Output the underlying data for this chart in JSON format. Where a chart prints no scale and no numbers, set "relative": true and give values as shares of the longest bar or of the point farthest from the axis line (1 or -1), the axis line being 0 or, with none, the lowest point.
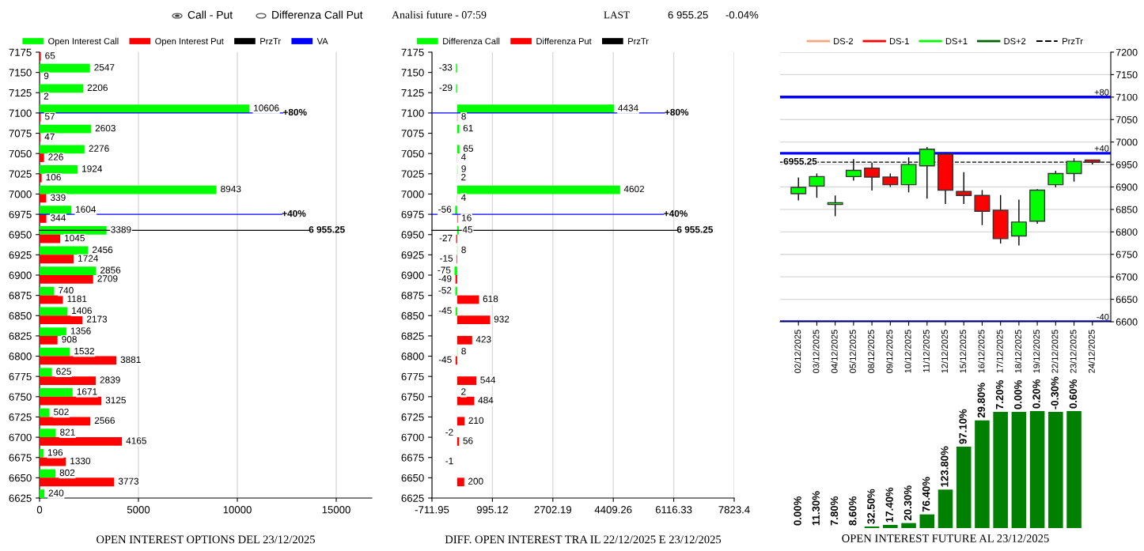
{
  "chart_data": [
    {
      "type": "bar",
      "orientation": "horizontal",
      "x": [
        7175,
        7150,
        7125,
        7100,
        7075,
        7050,
        7025,
        7000,
        6975,
        6950,
        6925,
        6900,
        6875,
        6850,
        6825,
        6800,
        6775,
        6750,
        6725,
        6700,
        6675,
        6650,
        6625
      ],
      "ylim": [
        6625,
        7175
      ],
      "yticks": [
        6625,
        6650,
        6675,
        6700,
        6725,
        6750,
        6775,
        6800,
        6825,
        6850,
        6875,
        6900,
        6925,
        6950,
        6975,
        7000,
        7025,
        7050,
        7075,
        7100,
        7125,
        7150,
        7175
      ],
      "xlim": [
        0,
        16800
      ],
      "xticks": [
        0,
        5000,
        10000,
        15000
      ],
      "grid": "x",
      "legend": "top left",
      "data_labels": true,
      "xlabel": "OPEN INTEREST OPTIONS DEL 23/12/2025",
      "annotations": [
        "Call - Put",
        "Differenza Call Put",
        {
          "text": "+80%",
          "x": 12300,
          "y": 7100
        },
        {
          "text": "+40%",
          "x": 12250,
          "y": 6975
        }
      ],
      "series": [
        {
          "name": "Open Interest Call",
          "color": "#00ff00",
          "values": [
            null,
            2547,
            2206,
            10606,
            2603,
            2276,
            1924,
            8943,
            1604,
            3389,
            2456,
            2856,
            740,
            1406,
            1356,
            1532,
            625,
            1671,
            502,
            821,
            196,
            802,
            240
          ]
        },
        {
          "name": "Open Interest Put",
          "color": "#ff0000",
          "values": [
            65,
            9,
            2,
            57,
            47,
            226,
            106,
            339,
            344,
            1045,
            1724,
            2709,
            1181,
            2173,
            908,
            3881,
            2839,
            3125,
            2566,
            4165,
            1330,
            3773,
            null
          ]
        },
        {
          "name": "PrzTr",
          "type": "line",
          "color": "#000000",
          "values": [
            null,
            null,
            null,
            null,
            null,
            null,
            null,
            null,
            null,
            null,
            null,
            null,
            null,
            null,
            null,
            null,
            null,
            null,
            null,
            null,
            null,
            null,
            null
          ]
        },
        {
          "name": "VA",
          "type": "line",
          "color": "#0000ff",
          "values": [
            null,
            null,
            null,
            null,
            null,
            null,
            null,
            null,
            null,
            null,
            null,
            null,
            null,
            null,
            null,
            null,
            null,
            null,
            null,
            null,
            null,
            null,
            null
          ]
        }
      ],
      "ref_lines": [
        {
          "axis": "y",
          "value": 7100,
          "color": "#0000ff"
        },
        {
          "axis": "y",
          "value": 6975,
          "color": "#0000ff"
        },
        {
          "axis": "y",
          "value": 6955.25,
          "label": "6 955.25",
          "color": "#000000"
        }
      ]
    },
    {
      "type": "bar",
      "orientation": "horizontal",
      "x": [
        7150,
        7125,
        7100,
        7075,
        7050,
        7025,
        7000,
        6975,
        6950,
        6925,
        6900,
        6875,
        6850,
        6825,
        6800,
        6775,
        6750,
        6725,
        6700,
        6675,
        6650
      ],
      "ylim": [
        6625,
        7175
      ],
      "yticks": [
        6625,
        6650,
        6675,
        6700,
        6725,
        6750,
        6775,
        6800,
        6825,
        6850,
        6875,
        6900,
        6925,
        6950,
        6975,
        7000,
        7025,
        7050,
        7075,
        7100,
        7125,
        7150,
        7175
      ],
      "xlim": [
        -711.95,
        7823.4
      ],
      "xticks": [
        -711.95,
        995.12,
        2702.19,
        4409.26,
        6116.33,
        7823.4
      ],
      "grid": "x",
      "legend": "top left",
      "data_labels": true,
      "title": "Analisi future - 07:59",
      "annotations": [
        "LAST",
        "6 955.25",
        "-0.04%",
        {
          "text": "+80%",
          "x": 5857,
          "y": 7100
        },
        {
          "text": "+40%",
          "x": 5830,
          "y": 6975
        }
      ],
      "xlabel": "DIFF. OPEN INTEREST TRA IL 22/12/2025 E 23/12/2025",
      "series": [
        {
          "name": "Differenza Call",
          "color": "#00ff00",
          "values": [
            -33,
            -29,
            4434,
            61,
            65,
            9,
            4602,
            -56,
            45,
            8,
            -75,
            -52,
            -45,
            null,
            8,
            null,
            2,
            null,
            -2,
            null,
            null
          ]
        },
        {
          "name": "Differenza Put",
          "color": "#ff0000",
          "values": [
            null,
            null,
            8,
            null,
            4,
            2,
            4,
            16,
            -27,
            -15,
            -49,
            618,
            932,
            423,
            -45,
            544,
            484,
            210,
            56,
            -1,
            200
          ]
        },
        {
          "name": "PrzTr",
          "type": "line",
          "color": "#000000",
          "values": [
            null,
            null,
            null,
            null,
            null,
            null,
            null,
            null,
            null,
            null,
            null,
            null,
            null,
            null,
            null,
            null,
            null,
            null,
            null,
            null,
            null
          ]
        }
      ],
      "ref_lines": [
        {
          "axis": "y",
          "value": 7100,
          "color": "#0000ff"
        },
        {
          "axis": "y",
          "value": 6975,
          "color": "#0000ff"
        },
        {
          "axis": "y",
          "value": 6955.25,
          "label": "6 955.25",
          "color": "#000000"
        }
      ]
    },
    {
      "type": "candlestick",
      "categories": [
        "02/12/2025",
        "03/12/2025",
        "04/12/2025",
        "05/12/2025",
        "08/12/2025",
        "09/12/2025",
        "10/12/2025",
        "11/12/2025",
        "12/12/2025",
        "15/12/2025",
        "16/12/2025",
        "17/12/2025",
        "18/12/2025",
        "19/12/2025",
        "22/12/2025",
        "23/12/2025",
        "24/12/2025"
      ],
      "ohlc": [
        [
          6885,
          6921,
          6870,
          6899
        ],
        [
          6902,
          6930,
          6876,
          6923
        ],
        [
          6861,
          6881,
          6835,
          6865
        ],
        [
          6923,
          6962,
          6914,
          6937
        ],
        [
          6942,
          6954,
          6892,
          6922
        ],
        [
          6922,
          6930,
          6900,
          6905
        ],
        [
          6905,
          6966,
          6888,
          6950
        ],
        [
          6947,
          6989,
          6874,
          6984
        ],
        [
          6973,
          6975,
          6862,
          6893
        ],
        [
          6890,
          6933,
          6862,
          6881
        ],
        [
          6881,
          6893,
          6815,
          6846
        ],
        [
          6848,
          6882,
          6774,
          6785
        ],
        [
          6791,
          6872,
          6770,
          6822
        ],
        [
          6824,
          6895,
          6818,
          6893
        ],
        [
          6905,
          6936,
          6899,
          6930
        ],
        [
          6930,
          6964,
          6912,
          6957
        ],
        [
          6960,
          6960,
          6950,
          6955
        ]
      ],
      "colors": [
        "#00ff00",
        "#00ff00",
        "#00ff00",
        "#00ff00",
        "#ff0000",
        "#ff0000",
        "#00ff00",
        "#00ff00",
        "#ff0000",
        "#ff0000",
        "#ff0000",
        "#ff0000",
        "#00ff00",
        "#00ff00",
        "#00ff00",
        "#00ff00",
        "#ff0000"
      ],
      "ylim": [
        6600,
        7200
      ],
      "yticks": [
        6600,
        6650,
        6700,
        6750,
        6800,
        6850,
        6900,
        6950,
        7000,
        7050,
        7100,
        7150,
        7200
      ],
      "grid": "y",
      "legend": "top",
      "annotations": [
        {
          "text": "+80",
          "y": 7100
        },
        {
          "text": "+40",
          "y": 6975
        },
        {
          "text": "-40",
          "y": 6600
        }
      ],
      "series": [
        {
          "name": "DS-2",
          "type": "line",
          "color": "#f4a582",
          "values": [
            null,
            null,
            null,
            null,
            null,
            null,
            null,
            null,
            null,
            null,
            null,
            null,
            null,
            null,
            null,
            null,
            null
          ]
        },
        {
          "name": "DS-1",
          "type": "line",
          "color": "#ff0000",
          "values": [
            null,
            null,
            null,
            null,
            null,
            null,
            null,
            null,
            null,
            null,
            null,
            null,
            null,
            null,
            null,
            null,
            null
          ]
        },
        {
          "name": "DS+1",
          "type": "line",
          "color": "#00ff00",
          "values": [
            null,
            null,
            null,
            null,
            null,
            null,
            null,
            null,
            null,
            null,
            null,
            null,
            null,
            null,
            null,
            null,
            null
          ]
        },
        {
          "name": "DS+2",
          "type": "line",
          "color": "#006400",
          "values": [
            null,
            null,
            null,
            null,
            null,
            null,
            null,
            null,
            null,
            null,
            null,
            null,
            null,
            null,
            null,
            null,
            null
          ]
        },
        {
          "name": "PrzTr",
          "type": "line",
          "color": "#000000",
          "line_style": "dashed",
          "values": [
            null,
            null,
            null,
            null,
            null,
            null,
            null,
            null,
            null,
            null,
            null,
            null,
            null,
            null,
            null,
            null,
            null
          ]
        }
      ],
      "ref_lines": [
        {
          "axis": "y",
          "value": 7100,
          "color": "#0000ff"
        },
        {
          "axis": "y",
          "value": 6975,
          "color": "#0000ff"
        },
        {
          "axis": "y",
          "value": 6600,
          "color": "#0000ff"
        },
        {
          "axis": "y",
          "value": 6955.25,
          "label": "6955.25",
          "color": "#000000",
          "line_style": "dashed"
        }
      ]
    },
    {
      "type": "bar",
      "relative": true,
      "categories": [
        null,
        null,
        null,
        null,
        null,
        null,
        null,
        null,
        null,
        null,
        null,
        null,
        null,
        null,
        null,
        null,
        null
      ],
      "xlabel": "OPEN INTEREST FUTURE AL 23/12/2025",
      "values": [
        0,
        0,
        0,
        0,
        0.0135,
        0.027,
        0.043,
        0.117,
        0.329,
        0.696,
        0.921,
        0.993,
        0.993,
        1,
        0.993,
        1,
        null
      ],
      "annotations": [
        "0.00%",
        "11.30%",
        "7.80%",
        "8.60%",
        "32.50%",
        "17.40%",
        "20.30%",
        "76.40%",
        "123.80%",
        "97.10%",
        "29.80%",
        "7.20%",
        "0.00%",
        "0.20%",
        "-0.30%",
        "0.60%"
      ],
      "color": "#008000"
    }
  ]
}
